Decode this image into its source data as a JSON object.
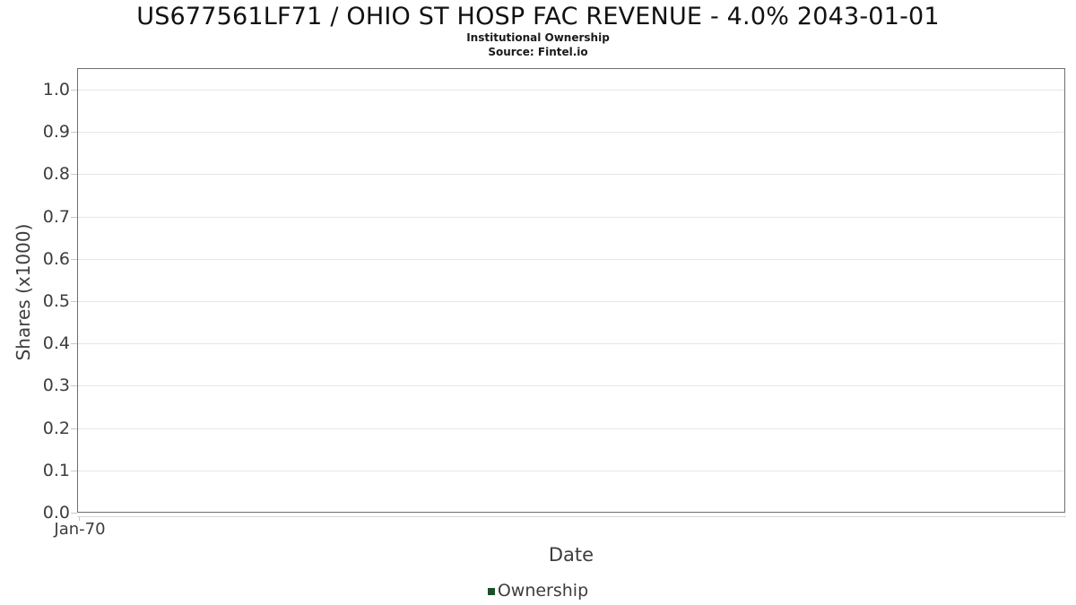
{
  "header": {
    "title": "US677561LF71 / OHIO ST HOSP FAC REVENUE - 4.0% 2043-01-01",
    "subtitle": "Institutional Ownership",
    "source": "Source: Fintel.io"
  },
  "chart_data": {
    "type": "line",
    "title": "US677561LF71 / OHIO ST HOSP FAC REVENUE - 4.0% 2043-01-01",
    "subtitle": "Institutional Ownership",
    "source": "Source: Fintel.io",
    "xlabel": "Date",
    "ylabel": "Shares (x1000)",
    "x_tick_labels": [
      "Jan-70"
    ],
    "y_tick_labels": [
      "0.0",
      "0.1",
      "0.2",
      "0.3",
      "0.4",
      "0.5",
      "0.6",
      "0.7",
      "0.8",
      "0.9",
      "1.0"
    ],
    "y_tick_values": [
      0.0,
      0.1,
      0.2,
      0.3,
      0.4,
      0.5,
      0.6,
      0.7,
      0.8,
      0.9,
      1.0
    ],
    "ylim": [
      0,
      1.051
    ],
    "grid": "horizontal",
    "legend_position": "bottom",
    "series": [
      {
        "name": "Ownership",
        "color": "#1d4f2a",
        "x": [],
        "values": []
      }
    ]
  },
  "colors": {
    "accent_green": "#1d4f2a",
    "plot_border": "#6f6f6f",
    "gridline": "#e6e6e6",
    "tick": "#c9c9c9",
    "text": "#3d3d3d"
  }
}
